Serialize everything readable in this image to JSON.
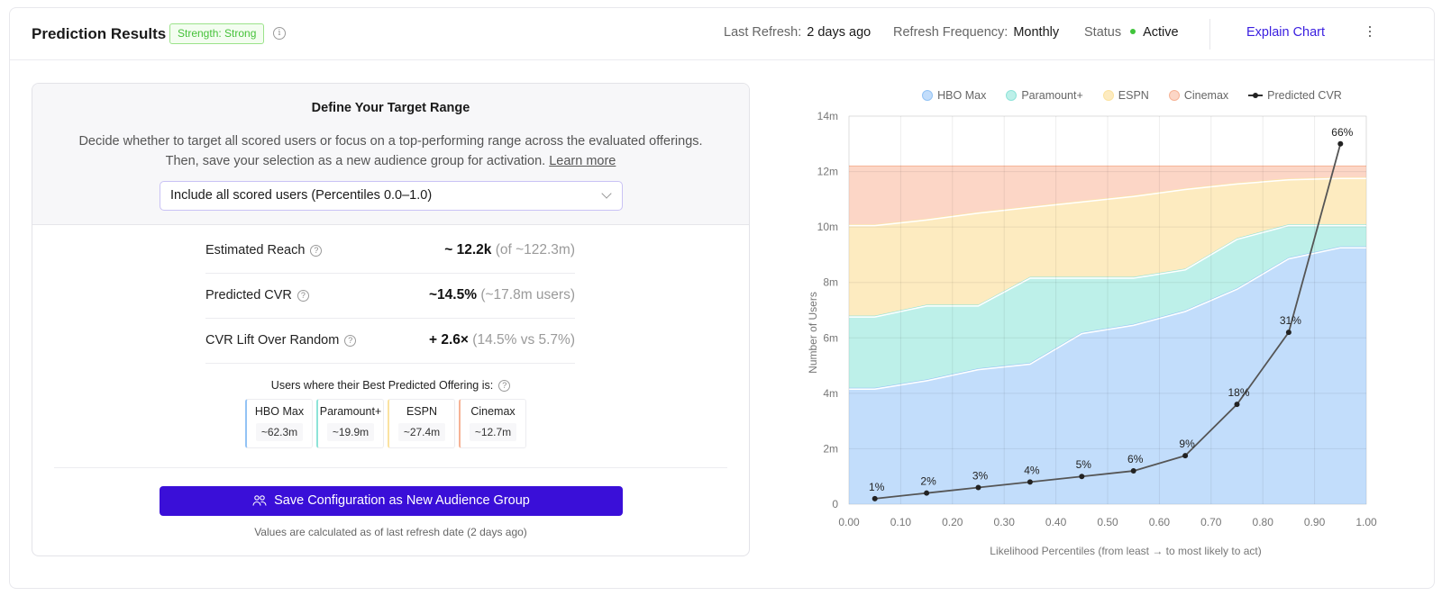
{
  "header": {
    "title": "Prediction Results",
    "strength_badge": "Strength: Strong",
    "last_refresh_label": "Last Refresh:",
    "last_refresh_value": "2 days ago",
    "refresh_frequency_label": "Refresh Frequency:",
    "refresh_frequency_value": "Monthly",
    "status_label": "Status",
    "status_value": "Active",
    "explain_chart": "Explain Chart"
  },
  "target_range": {
    "title": "Define Your Target Range",
    "description_line1": "Decide whether to target all scored users or focus on a top-performing range across the evaluated offerings.",
    "description_line2": "Then, save your selection as a new audience group for activation.",
    "learn_more": "Learn more",
    "select_value": "Include all scored users (Percentiles 0.0–1.0)"
  },
  "metrics": [
    {
      "label": "Estimated Reach",
      "value": "~ 12.2k",
      "detail": "(of ~122.3m)"
    },
    {
      "label": "Predicted CVR",
      "value": "~14.5%",
      "detail": "(~17.8m users)"
    },
    {
      "label": "CVR Lift Over Random",
      "value": "+ 2.6×",
      "detail": "(14.5% vs 5.7%)"
    }
  ],
  "offerings": {
    "caption": "Users where their Best Predicted Offering is:",
    "items": [
      {
        "name": "HBO Max",
        "value": "~62.3m"
      },
      {
        "name": "Paramount+",
        "value": "~19.9m"
      },
      {
        "name": "ESPN",
        "value": "~27.4m"
      },
      {
        "name": "Cinemax",
        "value": "~12.7m"
      }
    ]
  },
  "actions": {
    "save_button": "Save Configuration as New Audience Group",
    "footnote": "Values are calculated as of last refresh date (2 days ago)"
  },
  "colors": {
    "accent": "#3a0fd8",
    "link": "#3a1ee0",
    "status_active": "#3fc43a",
    "hbo": "#c2ddfb",
    "hbo_line": "#93c3f5",
    "paramount": "#bdf0e9",
    "paramount_line": "#8ee3d8",
    "espn": "#fdebc0",
    "espn_line": "#fbe3a1",
    "cinemax": "#fcd6c6",
    "cinemax_line": "#f6b396",
    "cvr": "#555555"
  },
  "chart_data": {
    "type": "area",
    "stacked": true,
    "xlabel": "Likelihood Percentiles (from least → to most likely to act)",
    "ylabel": "Number of Users",
    "xlim": [
      0,
      1
    ],
    "ylim": [
      0,
      14
    ],
    "x_ticks": [
      "0.00",
      "0.10",
      "0.20",
      "0.30",
      "0.40",
      "0.50",
      "0.60",
      "0.70",
      "0.80",
      "0.90",
      "1.00"
    ],
    "y_ticks": [
      "0",
      "2m",
      "4m",
      "6m",
      "8m",
      "10m",
      "12m",
      "14m"
    ],
    "y_tick_values": [
      0,
      2,
      4,
      6,
      8,
      10,
      12,
      14
    ],
    "grid": true,
    "legend": [
      "HBO Max",
      "Paramount+",
      "ESPN",
      "Cinemax",
      "Predicted CVR"
    ],
    "legend_position": "top",
    "x": [
      0.0,
      0.05,
      0.15,
      0.25,
      0.35,
      0.45,
      0.55,
      0.65,
      0.75,
      0.85,
      0.95,
      1.0
    ],
    "series": [
      {
        "name": "HBO Max",
        "cumulative_top_m": [
          4.2,
          4.2,
          4.5,
          4.9,
          5.1,
          6.2,
          6.5,
          7.0,
          7.8,
          8.9,
          9.3,
          9.3
        ]
      },
      {
        "name": "Paramount+",
        "cumulative_top_m": [
          6.8,
          6.8,
          7.2,
          7.2,
          8.2,
          8.2,
          8.2,
          8.5,
          9.6,
          10.1,
          10.1,
          10.1
        ]
      },
      {
        "name": "ESPN",
        "cumulative_top_m": [
          10.1,
          10.1,
          10.3,
          10.55,
          10.75,
          10.95,
          11.15,
          11.4,
          11.6,
          11.75,
          11.8,
          11.8
        ]
      },
      {
        "name": "Cinemax",
        "cumulative_top_m": [
          12.2,
          12.2,
          12.2,
          12.2,
          12.2,
          12.2,
          12.2,
          12.2,
          12.2,
          12.2,
          12.2,
          12.2
        ]
      }
    ],
    "cvr": {
      "name": "Predicted CVR",
      "x": [
        0.05,
        0.15,
        0.25,
        0.35,
        0.45,
        0.55,
        0.65,
        0.75,
        0.85,
        0.95
      ],
      "y_m": [
        0.2,
        0.4,
        0.6,
        0.8,
        1.0,
        1.2,
        1.75,
        3.6,
        6.2,
        13.0
      ],
      "labels": [
        "1%",
        "2%",
        "3%",
        "4%",
        "5%",
        "6%",
        "9%",
        "18%",
        "31%",
        "66%"
      ]
    }
  }
}
